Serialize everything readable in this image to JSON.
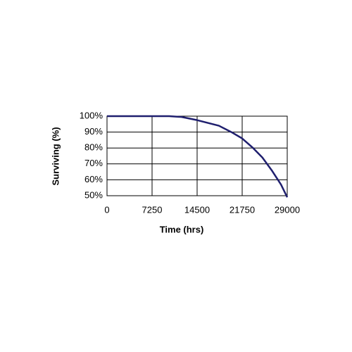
{
  "chart_data": {
    "type": "line",
    "x_label": "Time (hrs)",
    "y_label": "Surviving (%)",
    "x": [
      0,
      3625,
      7250,
      10000,
      12000,
      14500,
      16000,
      18000,
      20000,
      21750,
      23500,
      25000,
      26500,
      28000,
      29000
    ],
    "series": [
      {
        "color": "#1f1f6e",
        "values": [
          100,
          100,
          100,
          100,
          99.5,
          97.5,
          96,
          94,
          90,
          86,
          80,
          74,
          66,
          57,
          49
        ]
      }
    ],
    "xlim": [
      0,
      29000
    ],
    "xticks": [
      0,
      7250,
      14500,
      21750,
      29000
    ],
    "ylim": [
      50,
      100
    ],
    "yticks": [
      {
        "value": 50,
        "label": "50%"
      },
      {
        "value": 60,
        "label": "60%"
      },
      {
        "value": 70,
        "label": "70%"
      },
      {
        "value": 80,
        "label": "80%"
      },
      {
        "value": 90,
        "label": "90%"
      },
      {
        "value": 100,
        "label": "100%"
      }
    ],
    "grid": true
  }
}
